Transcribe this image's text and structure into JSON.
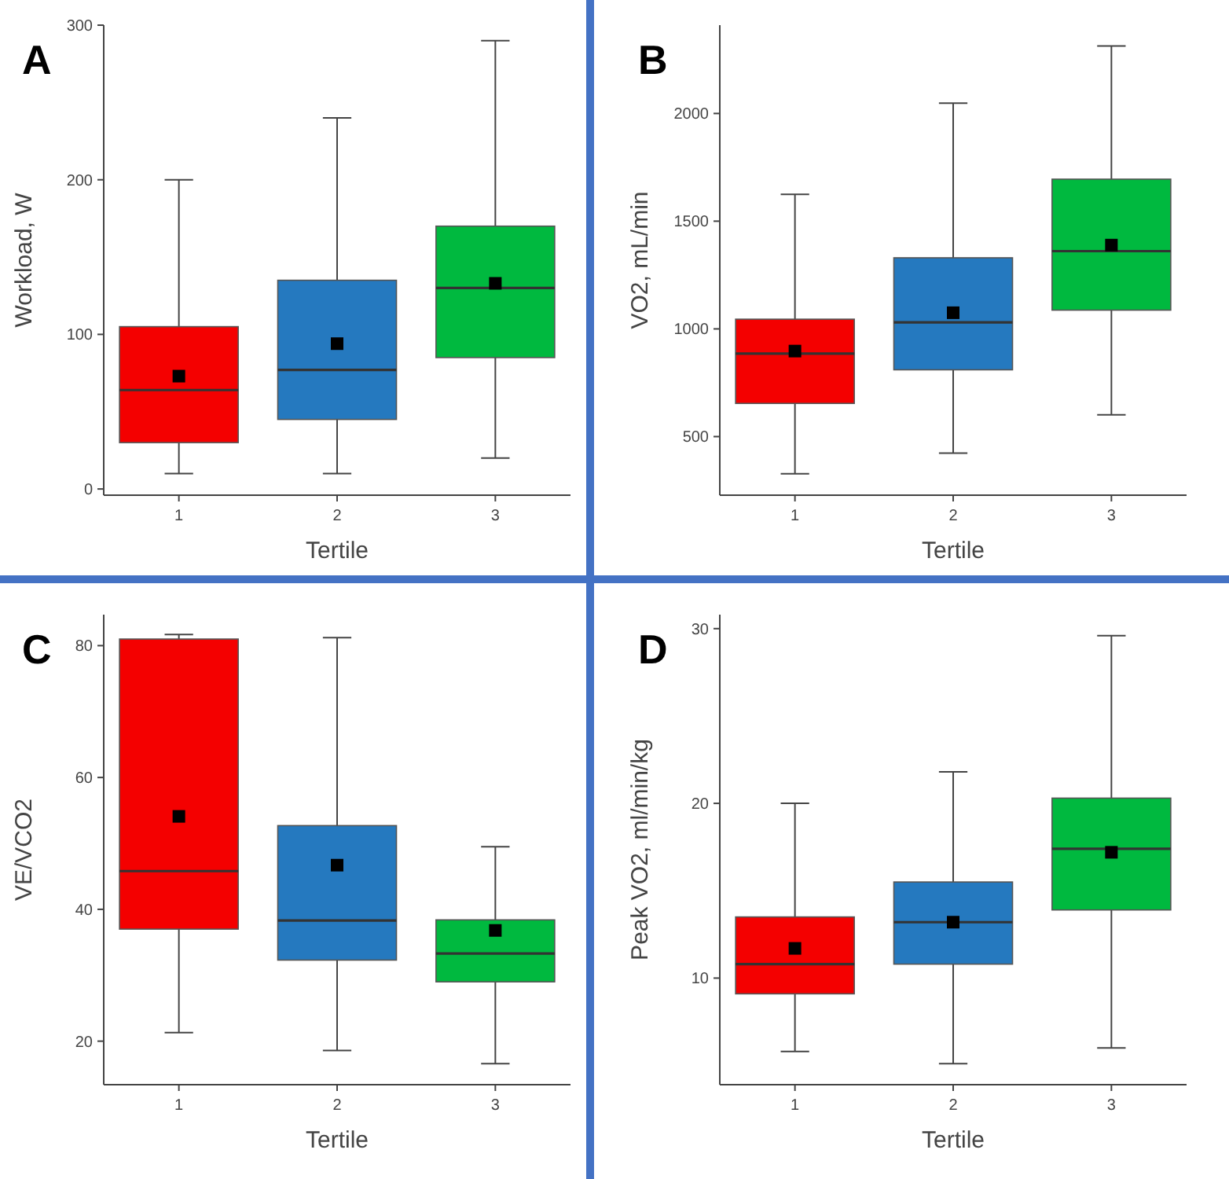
{
  "chart_data": [
    {
      "type": "box",
      "title": "A",
      "xlabel": "Tertile",
      "ylabel": "Workload, W",
      "categories": [
        "1",
        "2",
        "3"
      ],
      "colors": [
        "#f40000",
        "#2579bf",
        "#00b93f"
      ],
      "ylim": [
        -4,
        300
      ],
      "yticks": [
        0,
        100,
        200,
        300
      ],
      "boxes": [
        {
          "low": 10,
          "q1": 30,
          "median": 64,
          "q3": 105,
          "high": 200,
          "mean": 73
        },
        {
          "low": 10,
          "q1": 45,
          "median": 77,
          "q3": 135,
          "high": 240,
          "mean": 94
        },
        {
          "low": 20,
          "q1": 85,
          "median": 130,
          "q3": 170,
          "high": 290,
          "mean": 133
        }
      ]
    },
    {
      "type": "box",
      "title": "B",
      "xlabel": "Tertile",
      "ylabel": "VO2, mL/min",
      "categories": [
        "1",
        "2",
        "3"
      ],
      "colors": [
        "#f40000",
        "#2579bf",
        "#00b93f"
      ],
      "ylim": [
        228,
        2410
      ],
      "yticks": [
        500,
        1000,
        1500,
        2000
      ],
      "boxes": [
        {
          "low": 327,
          "q1": 654,
          "median": 885,
          "q3": 1045,
          "high": 1625,
          "mean": 897
        },
        {
          "low": 423,
          "q1": 810,
          "median": 1030,
          "q3": 1330,
          "high": 2048,
          "mean": 1075
        },
        {
          "low": 601,
          "q1": 1087,
          "median": 1361,
          "q3": 1695,
          "high": 2313,
          "mean": 1389
        }
      ]
    },
    {
      "type": "box",
      "title": "C",
      "xlabel": "Tertile",
      "ylabel": "VE/VCO2",
      "categories": [
        "1",
        "2",
        "3"
      ],
      "colors": [
        "#f40000",
        "#2579bf",
        "#00b93f"
      ],
      "ylim": [
        13.4,
        84.7
      ],
      "yticks": [
        20,
        40,
        60,
        80
      ],
      "boxes": [
        {
          "low": 21.3,
          "q1": 37,
          "median": 45.8,
          "q3": 81,
          "high": 81.7,
          "mean": 54.1
        },
        {
          "low": 18.6,
          "q1": 32.3,
          "median": 38.3,
          "q3": 52.7,
          "high": 81.2,
          "mean": 46.7
        },
        {
          "low": 16.6,
          "q1": 29,
          "median": 33.3,
          "q3": 38.4,
          "high": 49.5,
          "mean": 36.8
        }
      ]
    },
    {
      "type": "box",
      "title": "D",
      "xlabel": "Tertile",
      "ylabel": "Peak VO2, ml/min/kg",
      "categories": [
        "1",
        "2",
        "3"
      ],
      "colors": [
        "#f40000",
        "#2579bf",
        "#00b93f"
      ],
      "ylim": [
        3.9,
        30.8
      ],
      "yticks": [
        10,
        20,
        30
      ],
      "boxes": [
        {
          "low": 5.8,
          "q1": 9.1,
          "median": 10.8,
          "q3": 13.5,
          "high": 20,
          "mean": 11.7
        },
        {
          "low": 5.1,
          "q1": 10.8,
          "median": 13.2,
          "q3": 15.5,
          "high": 21.8,
          "mean": 13.2
        },
        {
          "low": 6,
          "q1": 13.9,
          "median": 17.4,
          "q3": 20.3,
          "high": 29.6,
          "mean": 17.2
        }
      ]
    }
  ]
}
